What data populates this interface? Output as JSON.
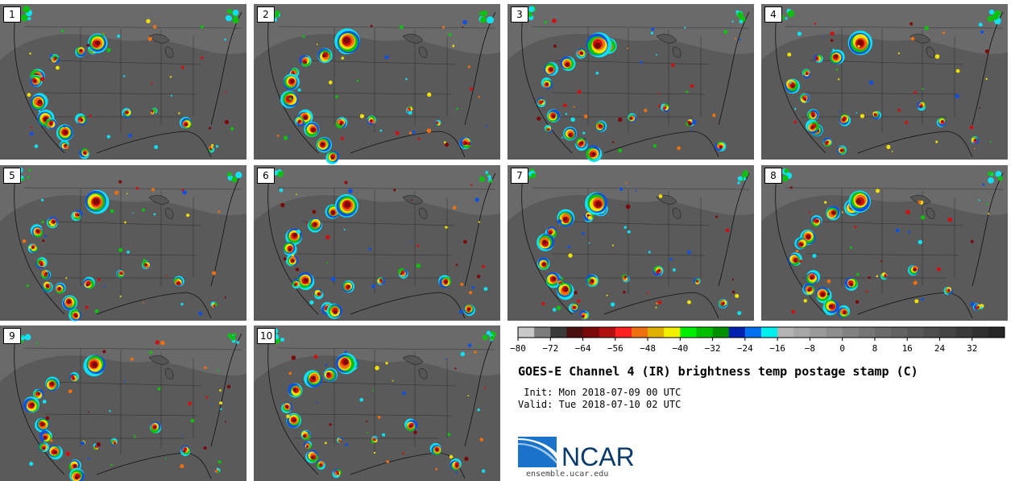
{
  "title": "GOES-E Channel 4 (IR) brightness temp postage stamp (C)",
  "init_label": " Init:",
  "init_value": "Mon 2018-07-09 00 UTC",
  "valid_label": "Valid:",
  "valid_value": "Tue 2018-07-10 02 UTC",
  "logo_text": "NCAR",
  "logo_url": "ensemble.ucar.edu",
  "members": [
    "1",
    "2",
    "3",
    "4",
    "5",
    "6",
    "7",
    "8",
    "9",
    "10"
  ],
  "colorbar": {
    "ticks": [
      "−80",
      "−72",
      "−64",
      "−56",
      "−48",
      "−40",
      "−32",
      "−24",
      "−16",
      "−8",
      "0",
      "8",
      "16",
      "24",
      "32"
    ],
    "colors": [
      "#c8c8c8",
      "#7c7c7c",
      "#3a3a3a",
      "#4a1010",
      "#7a0a0a",
      "#b01010",
      "#ff2020",
      "#f07010",
      "#e0b000",
      "#f0f000",
      "#00f000",
      "#00c000",
      "#009000",
      "#0020b0",
      "#0070f0",
      "#00f0f0",
      "#b4b4b4",
      "#a6a6a6",
      "#9a9a9a",
      "#8e8e8e",
      "#828282",
      "#767676",
      "#6c6c6c",
      "#626262",
      "#585858",
      "#4e4e4e",
      "#444444",
      "#3a3a3a",
      "#303030",
      "#262626"
    ]
  },
  "palette": {
    "ground": "#5a5a5a",
    "cold_core": "#7a0a0a",
    "red": "#d01010",
    "orange": "#f07010",
    "yellow": "#f0e000",
    "green": "#10c010",
    "blue": "#1050e0",
    "cyan": "#10e0f0"
  }
}
